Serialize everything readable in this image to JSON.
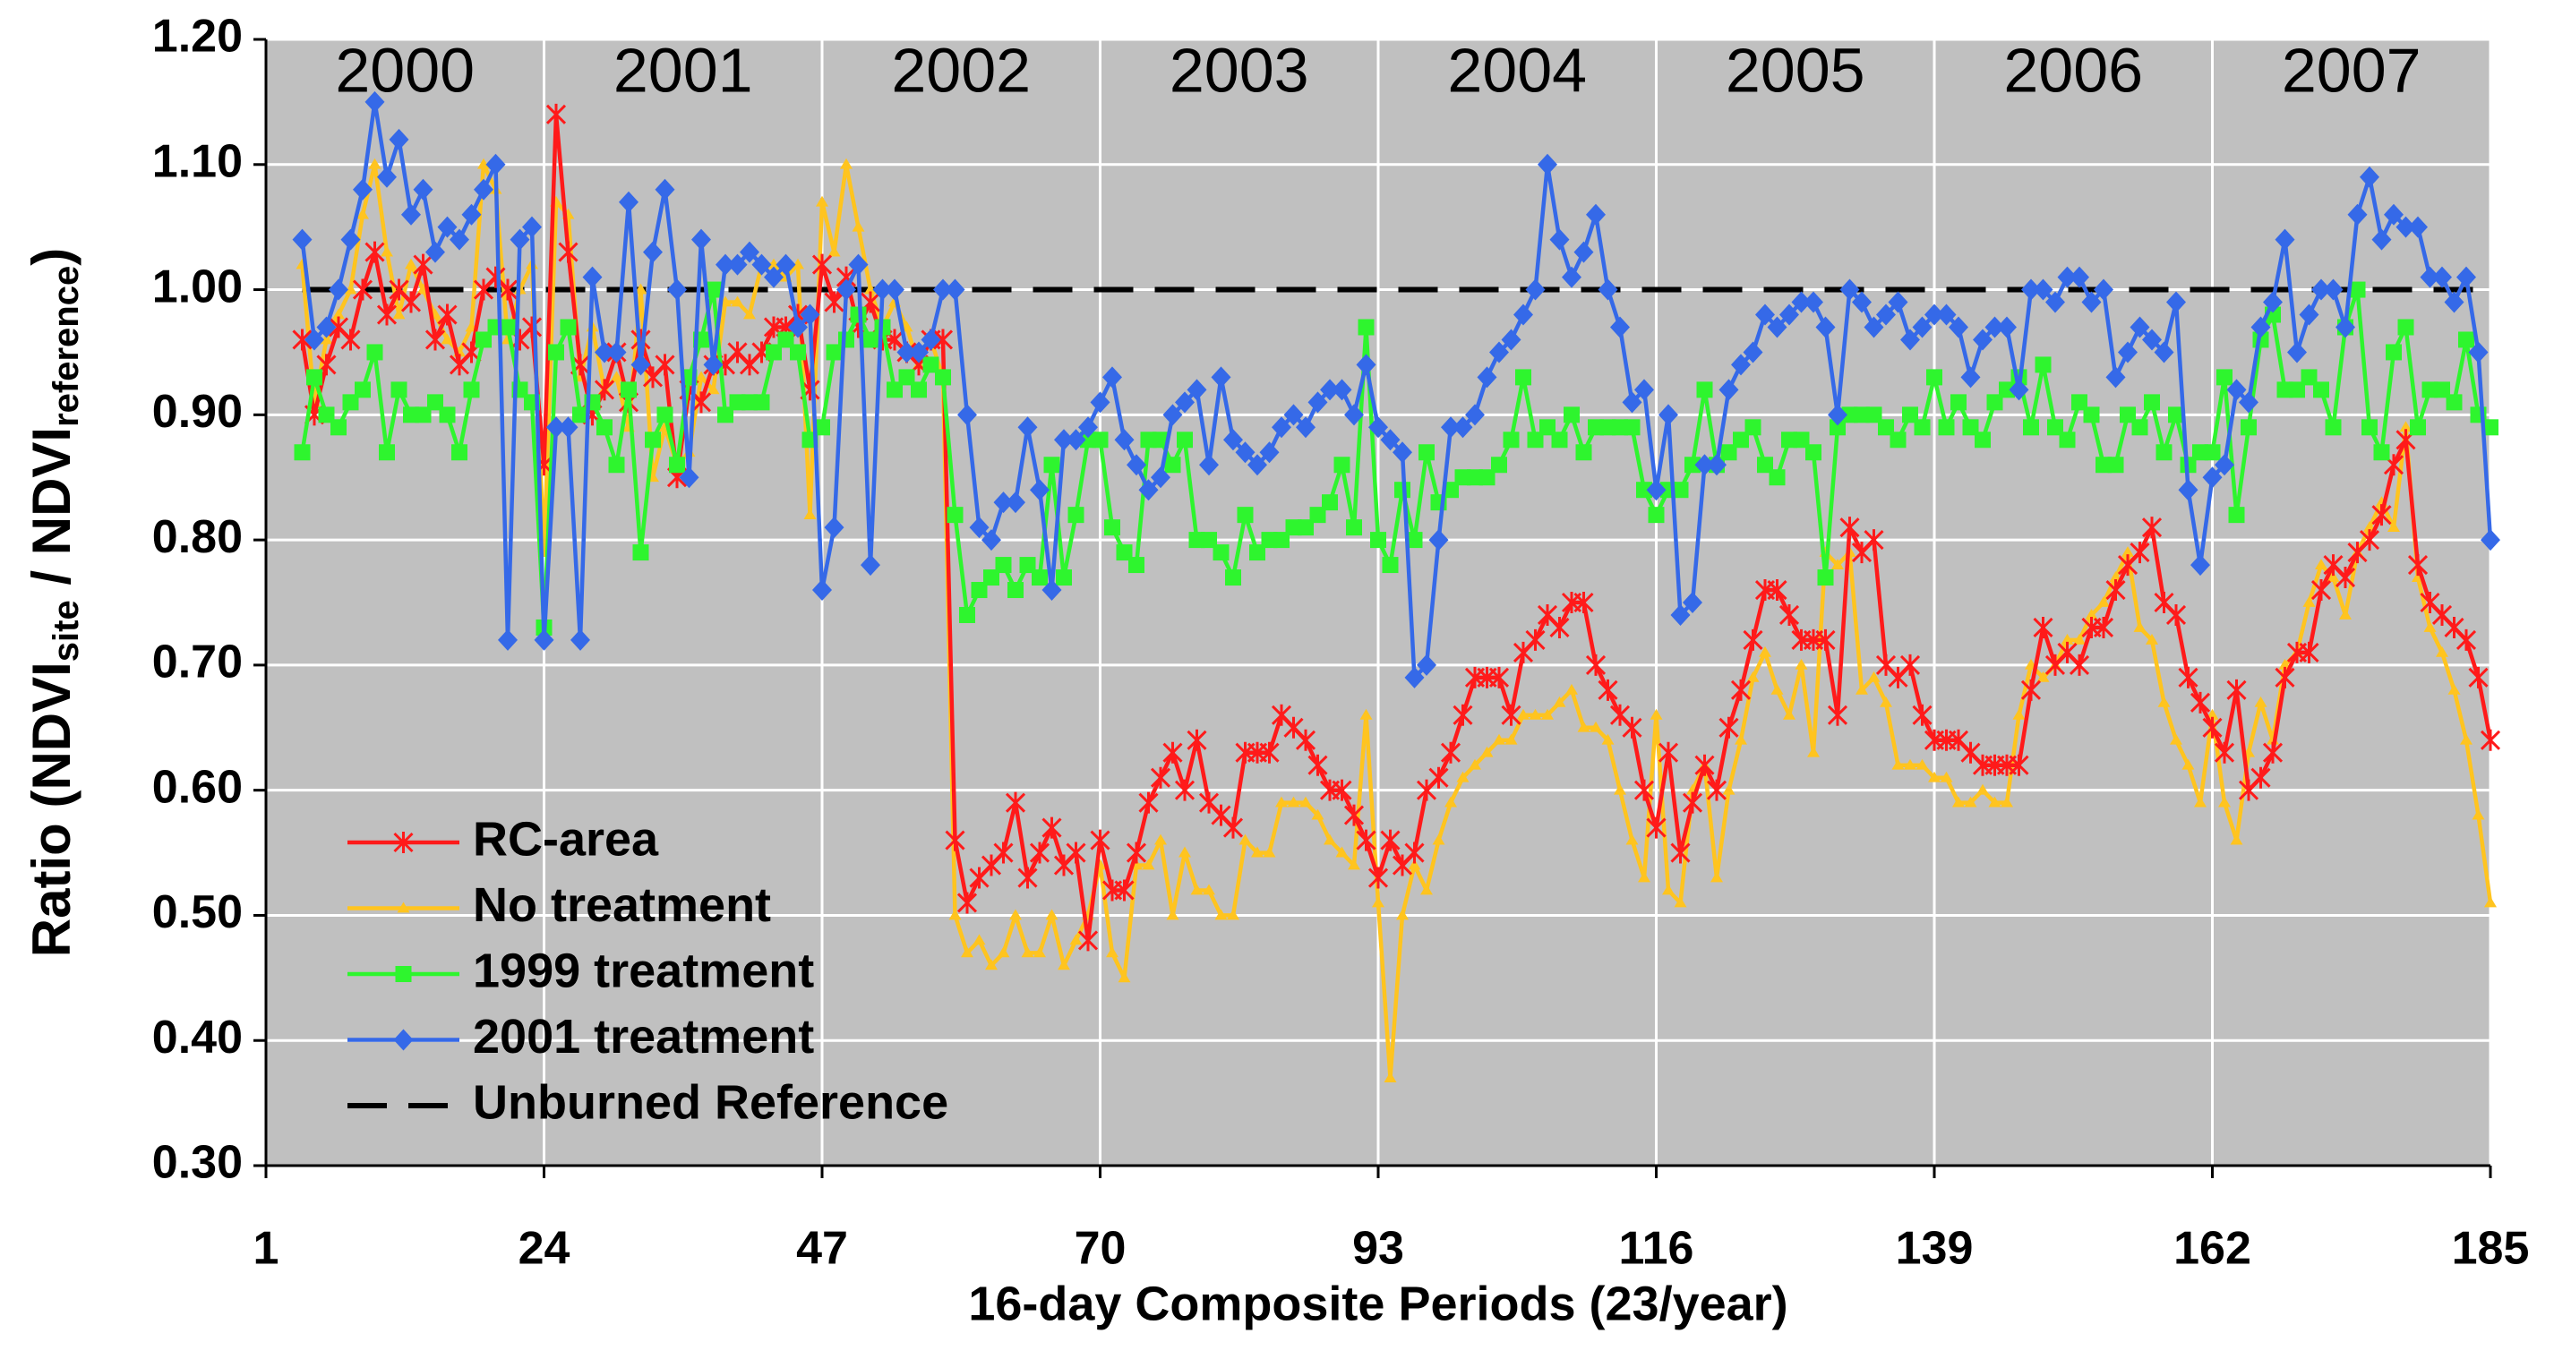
{
  "chart_data": {
    "type": "line",
    "xlabel": "16-day Composite Periods (23/year)",
    "ylabel": [
      "Ratio  (NDVI",
      "site",
      " / NDVI",
      "reference",
      ")"
    ],
    "year_labels": [
      "2000",
      "2001",
      "2002",
      "2003",
      "2004",
      "2005",
      "2006",
      "2007"
    ],
    "xlim": [
      1,
      185
    ],
    "xticks": [
      1,
      24,
      47,
      70,
      93,
      116,
      139,
      162,
      185
    ],
    "ylim": [
      0.3,
      1.2
    ],
    "yticks": [
      {
        "value": 0.3,
        "label": "0.30"
      },
      {
        "value": 0.4,
        "label": "0.40"
      },
      {
        "value": 0.5,
        "label": "0.50"
      },
      {
        "value": 0.6,
        "label": "0.60"
      },
      {
        "value": 0.7,
        "label": "0.70"
      },
      {
        "value": 0.8,
        "label": "0.80"
      },
      {
        "value": 0.9,
        "label": "0.90"
      },
      {
        "value": 1.0,
        "label": "1.00"
      },
      {
        "value": 1.1,
        "label": "1.10"
      },
      {
        "value": 1.2,
        "label": "1.20"
      }
    ],
    "grid": true,
    "legend": "lower left",
    "x": [
      4,
      5,
      6,
      7,
      8,
      9,
      10,
      11,
      12,
      13,
      14,
      15,
      16,
      17,
      18,
      19,
      20,
      21,
      22,
      23,
      24,
      25,
      26,
      27,
      28,
      29,
      30,
      31,
      32,
      33,
      34,
      35,
      36,
      37,
      38,
      39,
      40,
      41,
      42,
      43,
      44,
      45,
      46,
      47,
      48,
      49,
      50,
      51,
      52,
      53,
      54,
      55,
      56,
      57,
      58,
      59,
      60,
      61,
      62,
      63,
      64,
      65,
      66,
      67,
      68,
      69,
      70,
      71,
      72,
      73,
      74,
      75,
      76,
      77,
      78,
      79,
      80,
      81,
      82,
      83,
      84,
      85,
      86,
      87,
      88,
      89,
      90,
      91,
      92,
      93,
      94,
      95,
      96,
      97,
      98,
      99,
      100,
      101,
      102,
      103,
      104,
      105,
      106,
      107,
      108,
      109,
      110,
      111,
      112,
      113,
      114,
      115,
      116,
      117,
      118,
      119,
      120,
      121,
      122,
      123,
      124,
      125,
      126,
      127,
      128,
      129,
      130,
      131,
      132,
      133,
      134,
      135,
      136,
      137,
      138,
      139,
      140,
      141,
      142,
      143,
      144,
      145,
      146,
      147,
      148,
      149,
      150,
      151,
      152,
      153,
      154,
      155,
      156,
      157,
      158,
      159,
      160,
      161,
      162,
      163,
      164,
      165,
      166,
      167,
      168,
      169,
      170,
      171,
      172,
      173,
      174,
      175,
      176,
      177,
      178,
      179,
      180,
      181,
      182,
      183,
      184,
      185
    ],
    "series": [
      {
        "name": "RC-area",
        "color": "#ff1a1a",
        "marker": "star",
        "values": [
          0.96,
          0.9,
          0.94,
          0.97,
          0.96,
          1.0,
          1.03,
          0.98,
          1.0,
          0.99,
          1.02,
          0.96,
          0.98,
          0.94,
          0.95,
          1.0,
          1.01,
          1.0,
          0.96,
          0.97,
          0.86,
          1.14,
          1.03,
          0.94,
          0.9,
          0.92,
          0.95,
          0.91,
          0.96,
          0.93,
          0.94,
          0.85,
          0.92,
          0.91,
          0.94,
          0.94,
          0.95,
          0.94,
          0.95,
          0.97,
          0.97,
          0.98,
          0.92,
          1.02,
          0.99,
          1.01,
          0.97,
          0.99,
          0.96,
          0.96,
          0.95,
          0.94,
          0.96,
          0.96,
          0.56,
          0.51,
          0.53,
          0.54,
          0.55,
          0.59,
          0.53,
          0.55,
          0.57,
          0.54,
          0.55,
          0.48,
          0.56,
          0.52,
          0.52,
          0.55,
          0.59,
          0.61,
          0.63,
          0.6,
          0.64,
          0.59,
          0.58,
          0.57,
          0.63,
          0.63,
          0.63,
          0.66,
          0.65,
          0.64,
          0.62,
          0.6,
          0.6,
          0.58,
          0.56,
          0.53,
          0.56,
          0.54,
          0.55,
          0.6,
          0.61,
          0.63,
          0.66,
          0.69,
          0.69,
          0.69,
          0.66,
          0.71,
          0.72,
          0.74,
          0.73,
          0.75,
          0.75,
          0.7,
          0.68,
          0.66,
          0.65,
          0.6,
          0.57,
          0.63,
          0.55,
          0.59,
          0.62,
          0.6,
          0.65,
          0.68,
          0.72,
          0.76,
          0.76,
          0.74,
          0.72,
          0.72,
          0.72,
          0.66,
          0.81,
          0.79,
          0.8,
          0.7,
          0.69,
          0.7,
          0.66,
          0.64,
          0.64,
          0.64,
          0.63,
          0.62,
          0.62,
          0.62,
          0.62,
          0.68,
          0.73,
          0.7,
          0.71,
          0.7,
          0.73,
          0.73,
          0.76,
          0.78,
          0.79,
          0.81,
          0.75,
          0.74,
          0.69,
          0.67,
          0.65,
          0.63,
          0.68,
          0.6,
          0.61,
          0.63,
          0.69,
          0.71,
          0.71,
          0.76,
          0.78,
          0.77,
          0.79,
          0.8,
          0.82,
          0.86,
          0.88,
          0.78,
          0.75,
          0.74,
          0.73,
          0.72,
          0.69,
          0.64
        ]
      },
      {
        "name": "No treatment",
        "color": "#ffc41f",
        "marker": "triangle",
        "values": [
          1.02,
          0.91,
          0.96,
          0.98,
          1.0,
          1.06,
          1.1,
          1.03,
          0.98,
          1.02,
          1.0,
          0.98,
          0.96,
          0.95,
          0.97,
          1.1,
          1.08,
          0.96,
          1.0,
          1.02,
          0.79,
          1.07,
          1.06,
          0.93,
          0.97,
          0.92,
          0.93,
          0.89,
          1.0,
          0.85,
          0.89,
          0.86,
          0.87,
          0.93,
          0.92,
          0.99,
          0.99,
          0.98,
          1.02,
          1.02,
          1.01,
          1.02,
          0.82,
          1.07,
          1.03,
          1.1,
          1.05,
          1.0,
          0.97,
          0.99,
          0.97,
          0.94,
          0.96,
          0.93,
          0.5,
          0.47,
          0.48,
          0.46,
          0.47,
          0.5,
          0.47,
          0.47,
          0.5,
          0.46,
          0.48,
          0.5,
          0.54,
          0.47,
          0.45,
          0.54,
          0.54,
          0.56,
          0.5,
          0.55,
          0.52,
          0.52,
          0.5,
          0.5,
          0.56,
          0.55,
          0.55,
          0.59,
          0.59,
          0.59,
          0.58,
          0.56,
          0.55,
          0.54,
          0.66,
          0.51,
          0.37,
          0.5,
          0.54,
          0.52,
          0.56,
          0.59,
          0.61,
          0.62,
          0.63,
          0.64,
          0.64,
          0.66,
          0.66,
          0.66,
          0.67,
          0.68,
          0.65,
          0.65,
          0.64,
          0.6,
          0.56,
          0.53,
          0.66,
          0.52,
          0.51,
          0.6,
          0.62,
          0.53,
          0.6,
          0.64,
          0.69,
          0.71,
          0.68,
          0.66,
          0.7,
          0.63,
          0.79,
          0.78,
          0.79,
          0.68,
          0.69,
          0.67,
          0.62,
          0.62,
          0.62,
          0.61,
          0.61,
          0.59,
          0.59,
          0.6,
          0.59,
          0.59,
          0.66,
          0.7,
          0.69,
          0.7,
          0.72,
          0.72,
          0.74,
          0.75,
          0.77,
          0.79,
          0.73,
          0.72,
          0.67,
          0.64,
          0.62,
          0.59,
          0.66,
          0.59,
          0.56,
          0.63,
          0.67,
          0.64,
          0.7,
          0.71,
          0.75,
          0.78,
          0.77,
          0.74,
          0.79,
          0.81,
          0.83,
          0.81,
          0.89,
          0.77,
          0.73,
          0.71,
          0.68,
          0.64,
          0.58,
          0.51
        ]
      },
      {
        "name": "1999 treatment",
        "color": "#2ef52e",
        "marker": "square",
        "values": [
          0.87,
          0.93,
          0.9,
          0.89,
          0.91,
          0.92,
          0.95,
          0.87,
          0.92,
          0.9,
          0.9,
          0.91,
          0.9,
          0.87,
          0.92,
          0.96,
          0.97,
          0.97,
          0.92,
          0.91,
          0.73,
          0.95,
          0.97,
          0.9,
          0.91,
          0.89,
          0.86,
          0.92,
          0.79,
          0.88,
          0.9,
          0.86,
          0.93,
          0.96,
          1.0,
          0.9,
          0.91,
          0.91,
          0.91,
          0.95,
          0.96,
          0.95,
          0.88,
          0.89,
          0.95,
          0.96,
          0.98,
          0.96,
          0.97,
          0.92,
          0.93,
          0.92,
          0.94,
          0.93,
          0.82,
          0.74,
          0.76,
          0.77,
          0.78,
          0.76,
          0.78,
          0.77,
          0.86,
          0.77,
          0.82,
          0.88,
          0.88,
          0.81,
          0.79,
          0.78,
          0.88,
          0.88,
          0.86,
          0.88,
          0.8,
          0.8,
          0.79,
          0.77,
          0.82,
          0.79,
          0.8,
          0.8,
          0.81,
          0.81,
          0.82,
          0.83,
          0.86,
          0.81,
          0.97,
          0.8,
          0.78,
          0.84,
          0.8,
          0.87,
          0.83,
          0.84,
          0.85,
          0.85,
          0.85,
          0.86,
          0.88,
          0.93,
          0.88,
          0.89,
          0.88,
          0.9,
          0.87,
          0.89,
          0.89,
          0.89,
          0.89,
          0.84,
          0.82,
          0.84,
          0.84,
          0.86,
          0.92,
          0.86,
          0.87,
          0.88,
          0.89,
          0.86,
          0.85,
          0.88,
          0.88,
          0.87,
          0.77,
          0.89,
          0.9,
          0.9,
          0.9,
          0.89,
          0.88,
          0.9,
          0.89,
          0.93,
          0.89,
          0.91,
          0.89,
          0.88,
          0.91,
          0.92,
          0.93,
          0.89,
          0.94,
          0.89,
          0.88,
          0.91,
          0.9,
          0.86,
          0.86,
          0.9,
          0.89,
          0.91,
          0.87,
          0.9,
          0.86,
          0.87,
          0.87,
          0.93,
          0.82,
          0.89,
          0.96,
          0.98,
          0.92,
          0.92,
          0.93,
          0.92,
          0.89,
          0.97,
          1.0,
          0.89,
          0.87,
          0.95,
          0.97,
          0.89,
          0.92,
          0.92,
          0.91,
          0.96,
          0.9,
          0.89
        ]
      },
      {
        "name": "2001 treatment",
        "color": "#3569e8",
        "marker": "diamond",
        "values": [
          1.04,
          0.96,
          0.97,
          1.0,
          1.04,
          1.08,
          1.15,
          1.09,
          1.12,
          1.06,
          1.08,
          1.03,
          1.05,
          1.04,
          1.06,
          1.08,
          1.1,
          0.72,
          1.04,
          1.05,
          0.72,
          0.89,
          0.89,
          0.72,
          1.01,
          0.95,
          0.95,
          1.07,
          0.94,
          1.03,
          1.08,
          1.0,
          0.85,
          1.04,
          0.94,
          1.02,
          1.02,
          1.03,
          1.02,
          1.01,
          1.02,
          0.97,
          0.98,
          0.76,
          0.81,
          1.0,
          1.02,
          0.78,
          1.0,
          1.0,
          0.95,
          0.95,
          0.96,
          1.0,
          1.0,
          0.9,
          0.81,
          0.8,
          0.83,
          0.83,
          0.89,
          0.84,
          0.76,
          0.88,
          0.88,
          0.89,
          0.91,
          0.93,
          0.88,
          0.86,
          0.84,
          0.85,
          0.9,
          0.91,
          0.92,
          0.86,
          0.93,
          0.88,
          0.87,
          0.86,
          0.87,
          0.89,
          0.9,
          0.89,
          0.91,
          0.92,
          0.92,
          0.9,
          0.94,
          0.89,
          0.88,
          0.87,
          0.69,
          0.7,
          0.8,
          0.89,
          0.89,
          0.9,
          0.93,
          0.95,
          0.96,
          0.98,
          1.0,
          1.1,
          1.04,
          1.01,
          1.03,
          1.06,
          1.0,
          0.97,
          0.91,
          0.92,
          0.84,
          0.9,
          0.74,
          0.75,
          0.86,
          0.86,
          0.92,
          0.94,
          0.95,
          0.98,
          0.97,
          0.98,
          0.99,
          0.99,
          0.97,
          0.9,
          1.0,
          0.99,
          0.97,
          0.98,
          0.99,
          0.96,
          0.97,
          0.98,
          0.98,
          0.97,
          0.93,
          0.96,
          0.97,
          0.97,
          0.92,
          1.0,
          1.0,
          0.99,
          1.01,
          1.01,
          0.99,
          1.0,
          0.93,
          0.95,
          0.97,
          0.96,
          0.95,
          0.99,
          0.84,
          0.78,
          0.85,
          0.86,
          0.92,
          0.91,
          0.97,
          0.99,
          1.04,
          0.95,
          0.98,
          1.0,
          1.0,
          0.97,
          1.06,
          1.09,
          1.04,
          1.06,
          1.05,
          1.05,
          1.01,
          1.01,
          0.99,
          1.01,
          0.95,
          0.8
        ]
      }
    ],
    "reference": {
      "name": "Unburned Reference",
      "value": 1.0,
      "color": "#000000"
    }
  }
}
